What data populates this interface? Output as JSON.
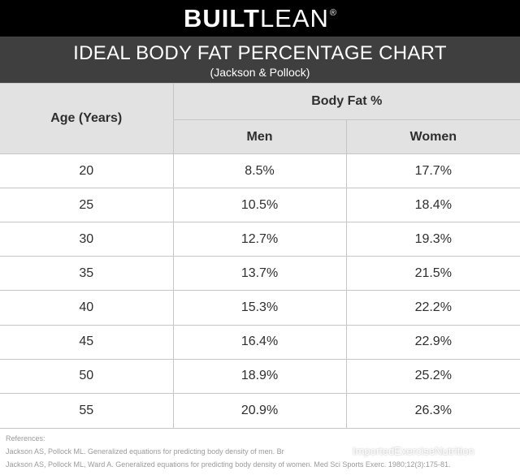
{
  "brand": {
    "part1": "BUILT",
    "part2": "LEAN",
    "mark": "®"
  },
  "header": {
    "title": "IDEAL BODY FAT PERCENTAGE CHART",
    "subtitle": "(Jackson & Pollock)"
  },
  "chart_data": {
    "type": "table",
    "title": "IDEAL BODY FAT PERCENTAGE CHART",
    "subtitle": "(Jackson & Pollock)",
    "group_header": "Body Fat %",
    "columns": [
      "Age (Years)",
      "Men",
      "Women"
    ],
    "rows": [
      {
        "age": "20",
        "men": "8.5%",
        "women": "17.7%"
      },
      {
        "age": "25",
        "men": "10.5%",
        "women": "18.4%"
      },
      {
        "age": "30",
        "men": "12.7%",
        "women": "19.3%"
      },
      {
        "age": "35",
        "men": "13.7%",
        "women": "21.5%"
      },
      {
        "age": "40",
        "men": "15.3%",
        "women": "22.2%"
      },
      {
        "age": "45",
        "men": "16.4%",
        "women": "22.9%"
      },
      {
        "age": "50",
        "men": "18.9%",
        "women": "25.2%"
      },
      {
        "age": "55",
        "men": "20.9%",
        "women": "26.3%"
      }
    ]
  },
  "references": {
    "label": "References:",
    "items": [
      "Jackson AS, Pollock ML. Generalized equations for predicting body density of men. Br",
      "Jackson AS, Pollock ML, Ward A. Generalized equations for predicting body density of women. Med Sci Sports Exerc. 1980;12(3):175-81."
    ]
  },
  "watermark": {
    "text": "ImportedExerciseNutrition",
    "icon": "wechat-icon"
  },
  "colors": {
    "brand_bar": "#000000",
    "title_bar": "#3f3f3f",
    "header_cells": "#e2e2e2",
    "grid_lines": "#c6c6c6",
    "cell_text": "#2e2e2e"
  }
}
